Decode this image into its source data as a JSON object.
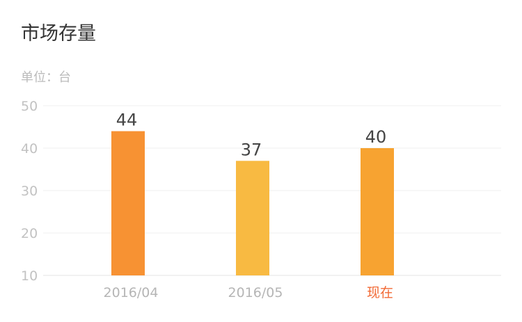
{
  "title": "市场存量",
  "unit_label": "单位：台",
  "chart_data": {
    "type": "bar",
    "title": "市场存量",
    "ylabel": "单位：台",
    "xlabel": "",
    "ylim": [
      10,
      50
    ],
    "yticks": [
      10,
      20,
      30,
      40,
      50
    ],
    "categories": [
      "2016/04",
      "2016/05",
      "现在"
    ],
    "values": [
      44,
      37,
      40
    ],
    "data_labels": [
      "44",
      "37",
      "40"
    ],
    "grid": true,
    "colors": {
      "bars": [
        "#f79233",
        "#f8ba42",
        "#f7a331"
      ],
      "category_labels": [
        "#b5b5b5",
        "#b5b5b5",
        "#f26a35"
      ]
    }
  }
}
